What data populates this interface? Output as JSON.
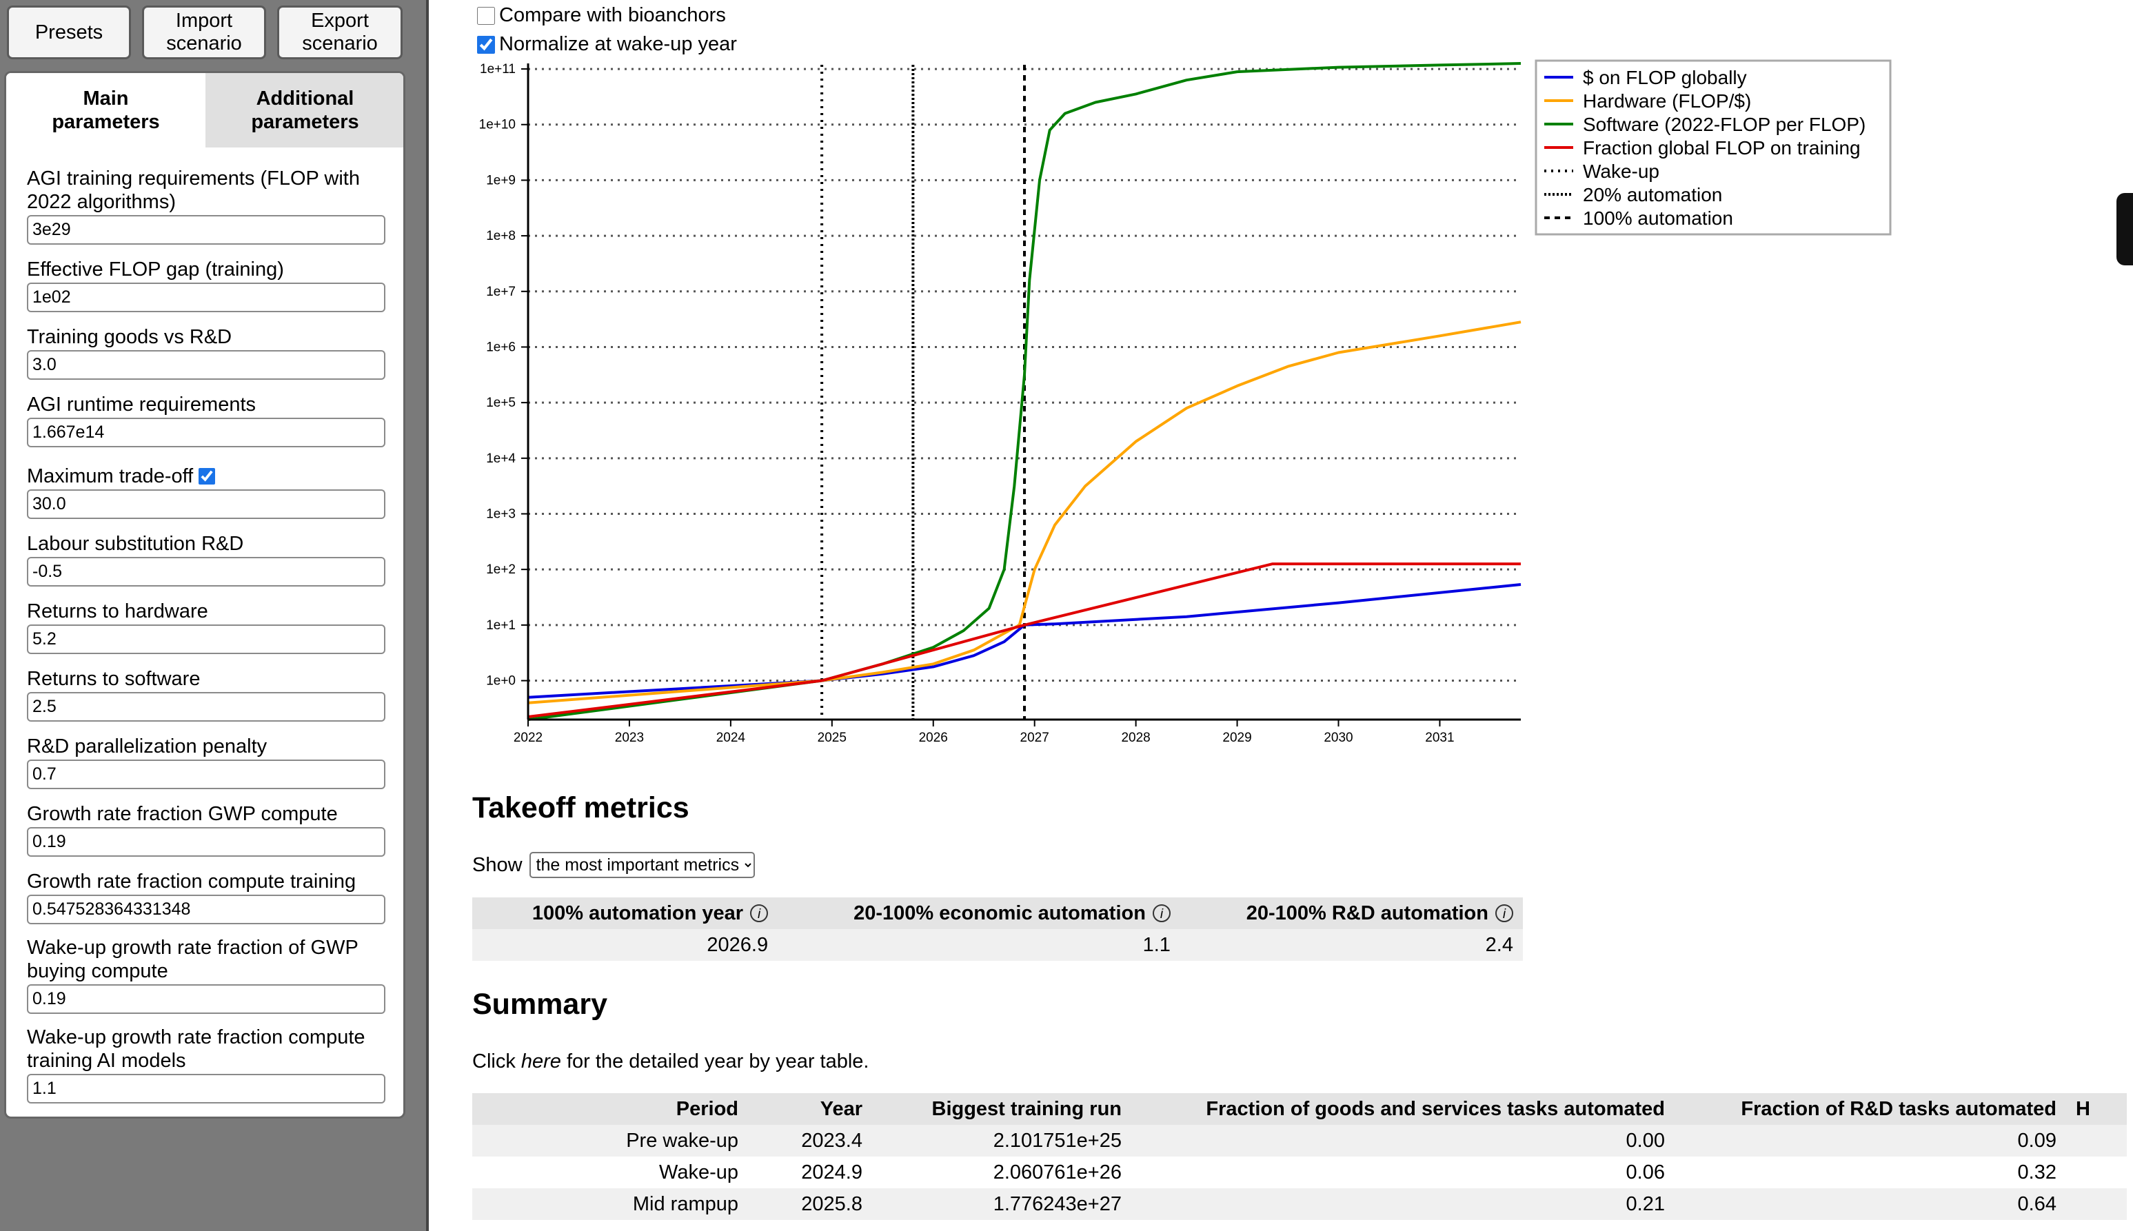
{
  "toolbar": {
    "presets_label": "Presets",
    "import_label": "Import\nscenario",
    "export_label": "Export\nscenario"
  },
  "tabs": {
    "main_label": "Main\nparameters",
    "additional_label": "Additional\nparameters"
  },
  "params": [
    {
      "label": "AGI training requirements (FLOP with 2022 algorithms)",
      "value": "3e29"
    },
    {
      "label": "Effective FLOP gap (training)",
      "value": "1e02"
    },
    {
      "label": "Training goods vs R&D",
      "value": "3.0"
    },
    {
      "label": "AGI runtime requirements",
      "value": "1.667e14"
    },
    {
      "label": "Maximum trade-off",
      "value": "30.0",
      "checked": true
    },
    {
      "label": "Labour substitution R&D",
      "value": "-0.5"
    },
    {
      "label": "Returns to hardware",
      "value": "5.2"
    },
    {
      "label": "Returns to software",
      "value": "2.5"
    },
    {
      "label": "R&D parallelization penalty",
      "value": "0.7"
    },
    {
      "label": "Growth rate fraction GWP compute",
      "value": "0.19"
    },
    {
      "label": "Growth rate fraction compute training",
      "value": "0.547528364331348"
    },
    {
      "label": "Wake-up growth rate fraction of GWP buying compute",
      "value": "0.19"
    },
    {
      "label": "Wake-up growth rate fraction compute training AI models",
      "value": "1.1"
    }
  ],
  "options": {
    "compare_bioanchors": {
      "label": "Compare with bioanchors",
      "checked": false
    },
    "normalize_wakeup": {
      "label": "Normalize at wake-up year",
      "checked": true
    }
  },
  "chart_data": {
    "type": "line",
    "yscale": "log",
    "xlim": [
      2022,
      2031.8
    ],
    "ylim_log10": [
      -0.7,
      11.1
    ],
    "x_ticks": [
      "2022",
      "2023",
      "2024",
      "2025",
      "2026",
      "2027",
      "2028",
      "2029",
      "2030",
      "2031"
    ],
    "y_ticks": [
      "1e+0",
      "1e+1",
      "1e+2",
      "1e+3",
      "1e+4",
      "1e+5",
      "1e+6",
      "1e+7",
      "1e+8",
      "1e+9",
      "1e+10",
      "1e+11"
    ],
    "grid": "horizontal-dotted",
    "legend_position": "top-right",
    "colors": {
      "flop_dollars": "#0000e0",
      "hardware": "#ffa500",
      "software": "#008000",
      "fraction": "#e00000"
    },
    "series": [
      {
        "name": "$ on FLOP globally",
        "key": "flop_dollars",
        "x": [
          2022,
          2024.9,
          2025.5,
          2026.0,
          2026.4,
          2026.7,
          2026.9,
          2027.2,
          2028.5,
          2030,
          2031.8
        ],
        "log10": [
          -0.3,
          0.0,
          0.12,
          0.25,
          0.45,
          0.7,
          1.0,
          1.02,
          1.15,
          1.4,
          1.73
        ]
      },
      {
        "name": "Hardware (FLOP/$)",
        "key": "hardware",
        "x": [
          2022,
          2024.9,
          2025.5,
          2026.0,
          2026.4,
          2026.7,
          2026.85,
          2027.0,
          2027.2,
          2027.5,
          2028.0,
          2028.5,
          2029.0,
          2029.5,
          2030.0,
          2031.0,
          2031.8
        ],
        "log10": [
          -0.4,
          0.0,
          0.15,
          0.3,
          0.55,
          0.85,
          1.0,
          2.0,
          2.8,
          3.5,
          4.3,
          4.9,
          5.3,
          5.65,
          5.9,
          6.2,
          6.45
        ]
      },
      {
        "name": "Software (2022-FLOP per FLOP)",
        "key": "software",
        "x": [
          2022,
          2024.9,
          2025.5,
          2026.0,
          2026.3,
          2026.55,
          2026.7,
          2026.8,
          2026.9,
          2026.95,
          2027.05,
          2027.15,
          2027.3,
          2027.6,
          2028.0,
          2028.5,
          2029.0,
          2030.0,
          2031.0,
          2031.8
        ],
        "log10": [
          -0.7,
          0.0,
          0.3,
          0.6,
          0.9,
          1.3,
          2.0,
          3.5,
          5.5,
          7.2,
          9.0,
          9.9,
          10.2,
          10.4,
          10.55,
          10.8,
          10.95,
          11.03,
          11.07,
          11.1
        ]
      },
      {
        "name": "Fraction global FLOP on training",
        "key": "fraction",
        "x": [
          2022,
          2024.9,
          2026.9,
          2029.35,
          2031.8
        ],
        "log10": [
          -0.65,
          0.0,
          1.0,
          2.1,
          2.1
        ]
      }
    ],
    "vlines": [
      {
        "name": "Wake-up",
        "x": 2024.9,
        "style": "dotted"
      },
      {
        "name": "20% automation",
        "x": 2025.8,
        "style": "dense-dotted"
      },
      {
        "name": "100% automation",
        "x": 2026.9,
        "style": "dashed"
      }
    ]
  },
  "takeoff": {
    "title": "Takeoff metrics",
    "show_label": "Show",
    "select_value": "the most important metrics",
    "headers": [
      "100% automation year",
      "20-100% economic automation",
      "20-100% R&D automation"
    ],
    "values": [
      "2026.9",
      "1.1",
      "2.4"
    ]
  },
  "summary": {
    "title": "Summary",
    "click_prefix": "Click ",
    "click_link": "here",
    "click_suffix": " for the detailed year by year table.",
    "headers": [
      "Period",
      "Year",
      "Biggest training run",
      "Fraction of goods and services tasks automated",
      "Fraction of R&D tasks automated",
      "H"
    ],
    "rows": [
      [
        "Pre wake-up",
        "2023.4",
        "2.101751e+25",
        "0.00",
        "0.09",
        ""
      ],
      [
        "Wake-up",
        "2024.9",
        "2.060761e+26",
        "0.06",
        "0.32",
        ""
      ],
      [
        "Mid rampup",
        "2025.8",
        "1.776243e+27",
        "0.21",
        "0.64",
        ""
      ]
    ]
  }
}
